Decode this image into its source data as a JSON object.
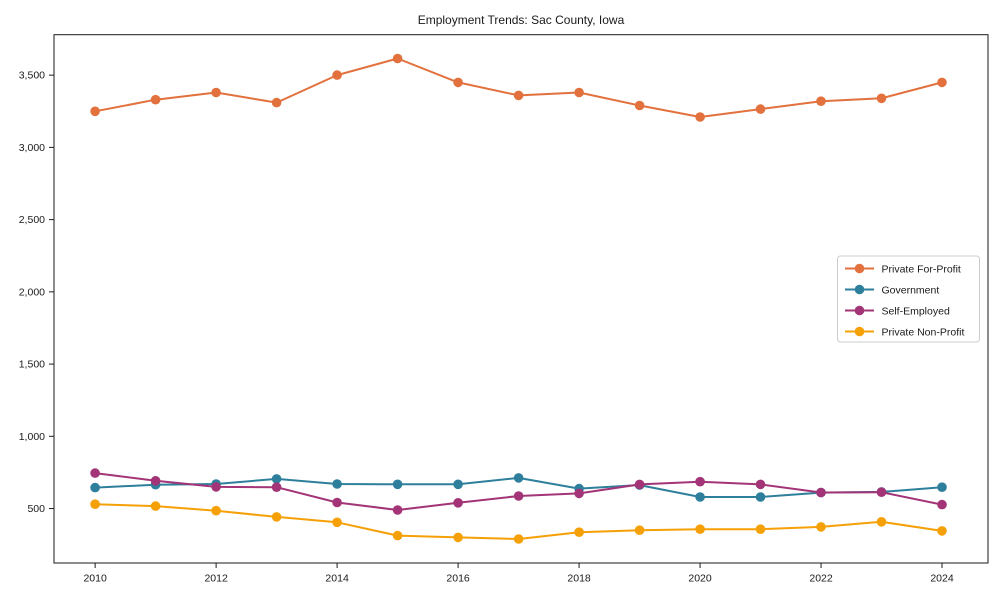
{
  "window": {
    "background": "#ffffff"
  },
  "chart_data": {
    "type": "line",
    "title": "Employment Trends: Sac County, Iowa",
    "xlabel": "",
    "ylabel": "",
    "grid": false,
    "legend_position": "right",
    "x": [
      2010,
      2011,
      2012,
      2013,
      2014,
      2015,
      2016,
      2017,
      2018,
      2019,
      2020,
      2021,
      2022,
      2023,
      2024
    ],
    "series": [
      {
        "name": "Private For-Profit",
        "color": "#e2713d",
        "values": [
          3250,
          3330,
          3380,
          3310,
          3500,
          3615,
          3450,
          3360,
          3380,
          3290,
          3210,
          3265,
          3320,
          3340,
          3450
        ]
      },
      {
        "name": "Government",
        "color": "#2e7f9c",
        "values": [
          645,
          665,
          670,
          705,
          670,
          668,
          668,
          712,
          638,
          662,
          580,
          580,
          610,
          615,
          648
        ]
      },
      {
        "name": "Self-Employed",
        "color": "#a23477",
        "values": [
          745,
          692,
          650,
          648,
          542,
          490,
          540,
          587,
          605,
          667,
          686,
          667,
          611,
          613,
          527
        ]
      },
      {
        "name": "Private Non-Profit",
        "color": "#f5a006",
        "values": [
          530,
          517,
          485,
          442,
          405,
          313,
          300,
          289,
          336,
          350,
          357,
          357,
          373,
          408,
          345
        ]
      }
    ],
    "xticks": [
      2010,
      2012,
      2014,
      2016,
      2018,
      2020,
      2022,
      2024
    ],
    "xtick_labels": [
      "2010",
      "2012",
      "2014",
      "2016",
      "2018",
      "2020",
      "2022",
      "2024"
    ],
    "yticks": [
      500,
      1000,
      1500,
      2000,
      2500,
      3000,
      3500
    ],
    "ytick_labels": [
      "500",
      "1,000",
      "1,500",
      "2,000",
      "2,500",
      "3,000",
      "3,500"
    ],
    "xlim": [
      2009.32,
      2024.76
    ],
    "ylim": [
      123,
      3780
    ],
    "marker": "circle",
    "axis_color": "#1a1a1a"
  }
}
